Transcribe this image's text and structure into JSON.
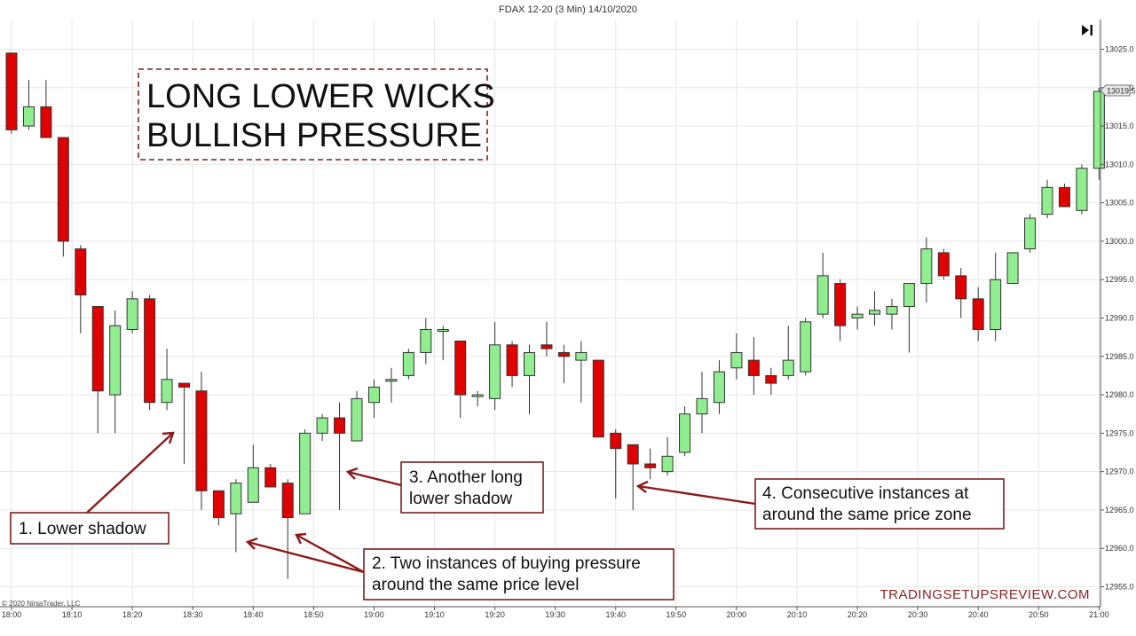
{
  "chart_data": {
    "type": "candlestick",
    "title": "FDAX 12-20 (3 Min)  14/10/2020",
    "headline": [
      "LONG LOWER WICKS",
      "BULLISH PRESSURE"
    ],
    "ylim": [
      12953,
      13029
    ],
    "y_ticks": [
      12955,
      12960,
      12965,
      12970,
      12975,
      12980,
      12985,
      12990,
      12995,
      13000,
      13005,
      13010,
      13015,
      13020,
      13025
    ],
    "y_tick_labels": [
      "12955.0",
      "12960.0",
      "12965.0",
      "12970.0",
      "12975.0",
      "12980.0",
      "12985.0",
      "12990.0",
      "12995.0",
      "13000.0",
      "13005.0",
      "13010.0",
      "13015.0",
      "13020.0",
      "13025.0"
    ],
    "x_ticks": [
      {
        "label": "18:00",
        "bar": 0
      },
      {
        "label": "18:10",
        "bar": 3.5
      },
      {
        "label": "18:20",
        "bar": 7
      },
      {
        "label": "18:30",
        "bar": 10.5
      },
      {
        "label": "18:40",
        "bar": 14
      },
      {
        "label": "18:50",
        "bar": 17.5
      },
      {
        "label": "19:00",
        "bar": 21
      },
      {
        "label": "19:10",
        "bar": 24.5
      },
      {
        "label": "19:20",
        "bar": 28
      },
      {
        "label": "19:30",
        "bar": 31.5
      },
      {
        "label": "19:40",
        "bar": 35
      },
      {
        "label": "19:50",
        "bar": 38.5
      },
      {
        "label": "20:00",
        "bar": 42
      },
      {
        "label": "20:10",
        "bar": 45.5
      },
      {
        "label": "20:20",
        "bar": 49
      },
      {
        "label": "20:30",
        "bar": 52.5
      },
      {
        "label": "20:40",
        "bar": 56
      },
      {
        "label": "20:50",
        "bar": 59.5
      },
      {
        "label": "21:00",
        "bar": 63
      }
    ],
    "last_price_label": "13019.5",
    "candles": [
      {
        "o": 13024.5,
        "h": 13024.5,
        "l": 13014.0,
        "c": 13014.5
      },
      {
        "o": 13015.0,
        "h": 13021.0,
        "l": 13014.5,
        "c": 13017.5
      },
      {
        "o": 13017.5,
        "h": 13021.0,
        "l": 13013.5,
        "c": 13013.5
      },
      {
        "o": 13013.5,
        "h": 13013.5,
        "l": 12998.0,
        "c": 13000.0
      },
      {
        "o": 12999.0,
        "h": 12999.5,
        "l": 12988.0,
        "c": 12993.0
      },
      {
        "o": 12991.5,
        "h": 12991.5,
        "l": 12975.0,
        "c": 12980.5
      },
      {
        "o": 12980.0,
        "h": 12991.0,
        "l": 12975.0,
        "c": 12989.0
      },
      {
        "o": 12988.5,
        "h": 12993.5,
        "l": 12988.0,
        "c": 12992.5
      },
      {
        "o": 12992.5,
        "h": 12993.0,
        "l": 12978.0,
        "c": 12979.0
      },
      {
        "o": 12979.0,
        "h": 12986.0,
        "l": 12978.0,
        "c": 12982.0
      },
      {
        "o": 12981.5,
        "h": 12981.5,
        "l": 12971.0,
        "c": 12981.0
      },
      {
        "o": 12980.5,
        "h": 12983.0,
        "l": 12965.0,
        "c": 12967.5
      },
      {
        "o": 12967.5,
        "h": 12967.5,
        "l": 12963.0,
        "c": 12964.0
      },
      {
        "o": 12964.5,
        "h": 12969.0,
        "l": 12959.5,
        "c": 12968.5
      },
      {
        "o": 12966.0,
        "h": 12973.5,
        "l": 12966.0,
        "c": 12970.5
      },
      {
        "o": 12970.5,
        "h": 12971.0,
        "l": 12968.0,
        "c": 12968.0
      },
      {
        "o": 12968.5,
        "h": 12969.0,
        "l": 12956.0,
        "c": 12964.0
      },
      {
        "o": 12964.5,
        "h": 12975.5,
        "l": 12964.5,
        "c": 12975.0
      },
      {
        "o": 12975.0,
        "h": 12977.5,
        "l": 12974.0,
        "c": 12977.0
      },
      {
        "o": 12977.0,
        "h": 12979.0,
        "l": 12965.0,
        "c": 12975.0
      },
      {
        "o": 12974.0,
        "h": 12980.5,
        "l": 12974.0,
        "c": 12979.5
      },
      {
        "o": 12979.0,
        "h": 12982.0,
        "l": 12977.0,
        "c": 12981.0
      },
      {
        "o": 12982.0,
        "h": 12983.5,
        "l": 12979.0,
        "c": 12982.0
      },
      {
        "o": 12982.5,
        "h": 12986.0,
        "l": 12982.0,
        "c": 12985.5
      },
      {
        "o": 12985.5,
        "h": 12990.0,
        "l": 12984.0,
        "c": 12988.5
      },
      {
        "o": 12988.5,
        "h": 12989.0,
        "l": 12984.5,
        "c": 12988.5
      },
      {
        "o": 12987.0,
        "h": 12987.0,
        "l": 12977.0,
        "c": 12980.0
      },
      {
        "o": 12980.0,
        "h": 12980.5,
        "l": 12978.5,
        "c": 12980.0
      },
      {
        "o": 12979.5,
        "h": 12989.5,
        "l": 12978.0,
        "c": 12986.5
      },
      {
        "o": 12986.5,
        "h": 12987.0,
        "l": 12981.0,
        "c": 12982.5
      },
      {
        "o": 12982.5,
        "h": 12986.5,
        "l": 12977.5,
        "c": 12985.5
      },
      {
        "o": 12986.5,
        "h": 12989.5,
        "l": 12985.0,
        "c": 12986.0
      },
      {
        "o": 12985.5,
        "h": 12986.5,
        "l": 12981.5,
        "c": 12985.0
      },
      {
        "o": 12984.5,
        "h": 12987.0,
        "l": 12979.0,
        "c": 12985.5
      },
      {
        "o": 12984.5,
        "h": 12984.5,
        "l": 12974.5,
        "c": 12974.5
      },
      {
        "o": 12975.0,
        "h": 12975.5,
        "l": 12966.5,
        "c": 12973.0
      },
      {
        "o": 12973.5,
        "h": 12973.5,
        "l": 12965.0,
        "c": 12971.0
      },
      {
        "o": 12971.0,
        "h": 12973.0,
        "l": 12969.0,
        "c": 12970.5
      },
      {
        "o": 12970.0,
        "h": 12974.5,
        "l": 12969.5,
        "c": 12972.0
      },
      {
        "o": 12972.5,
        "h": 12978.5,
        "l": 12972.0,
        "c": 12977.5
      },
      {
        "o": 12977.5,
        "h": 12983.0,
        "l": 12975.0,
        "c": 12979.5
      },
      {
        "o": 12979.0,
        "h": 12984.5,
        "l": 12977.5,
        "c": 12983.0
      },
      {
        "o": 12983.5,
        "h": 12988.0,
        "l": 12982.0,
        "c": 12985.5
      },
      {
        "o": 12984.5,
        "h": 12987.5,
        "l": 12980.0,
        "c": 12982.5
      },
      {
        "o": 12982.5,
        "h": 12983.5,
        "l": 12980.0,
        "c": 12981.5
      },
      {
        "o": 12982.5,
        "h": 12989.0,
        "l": 12982.0,
        "c": 12984.5
      },
      {
        "o": 12983.0,
        "h": 12990.0,
        "l": 12982.5,
        "c": 12989.5
      },
      {
        "o": 12990.5,
        "h": 12998.5,
        "l": 12990.0,
        "c": 12995.5
      },
      {
        "o": 12994.5,
        "h": 12995.0,
        "l": 12987.0,
        "c": 12989.0
      },
      {
        "o": 12990.0,
        "h": 12991.5,
        "l": 12988.5,
        "c": 12990.5
      },
      {
        "o": 12990.5,
        "h": 12993.5,
        "l": 12989.0,
        "c": 12991.0
      },
      {
        "o": 12990.5,
        "h": 12992.5,
        "l": 12988.5,
        "c": 12991.5
      },
      {
        "o": 12991.5,
        "h": 12994.5,
        "l": 12985.5,
        "c": 12994.5
      },
      {
        "o": 12994.5,
        "h": 13000.5,
        "l": 12992.0,
        "c": 12999.0
      },
      {
        "o": 12998.5,
        "h": 12999.0,
        "l": 12995.0,
        "c": 12995.5
      },
      {
        "o": 12995.5,
        "h": 12996.5,
        "l": 12990.0,
        "c": 12992.5
      },
      {
        "o": 12992.5,
        "h": 12994.0,
        "l": 12987.0,
        "c": 12988.5
      },
      {
        "o": 12988.5,
        "h": 12998.5,
        "l": 12987.0,
        "c": 12995.0
      },
      {
        "o": 12994.5,
        "h": 12998.5,
        "l": 12994.5,
        "c": 12998.5
      },
      {
        "o": 12999.0,
        "h": 13003.5,
        "l": 12998.5,
        "c": 13003.0
      },
      {
        "o": 13003.5,
        "h": 13008.0,
        "l": 13003.0,
        "c": 13007.0
      },
      {
        "o": 13007.0,
        "h": 13007.5,
        "l": 13004.5,
        "c": 13004.5
      },
      {
        "o": 13004.0,
        "h": 13010.0,
        "l": 13003.5,
        "c": 13009.5
      },
      {
        "o": 13009.5,
        "h": 13020.0,
        "l": 13008.0,
        "c": 13019.5
      }
    ]
  },
  "copyright": "© 2020 NinjaTrader, LLC",
  "watermark": "TRADINGSETUPSREVIEW.COM",
  "annotations": [
    {
      "lines": [
        "1. Lower shadow"
      ]
    },
    {
      "lines": [
        "2. Two instances of buying pressure",
        "around the same price level"
      ]
    },
    {
      "lines": [
        "3. Another long",
        "lower shadow"
      ]
    },
    {
      "lines": [
        "4. Consecutive instances at",
        "around the same price zone"
      ]
    }
  ],
  "colors": {
    "up": "#90ee90",
    "down": "#e00000",
    "annotation": "#8b1a1a"
  }
}
